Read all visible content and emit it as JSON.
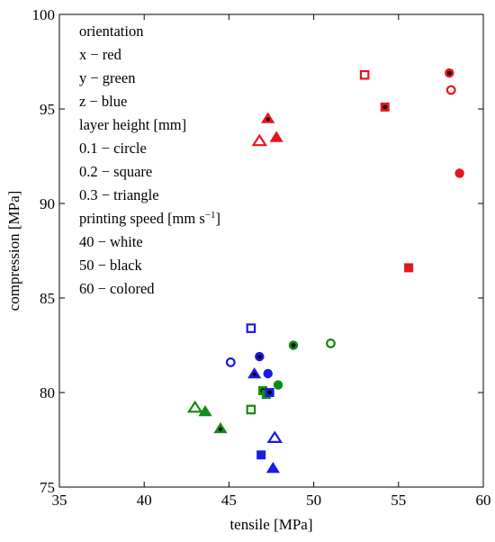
{
  "chart_data": {
    "type": "scatter",
    "xlabel": "tensile [MPa]",
    "ylabel": "compression [MPa]",
    "xlim": [
      35,
      60
    ],
    "ylim": [
      75,
      100
    ],
    "xticks": [
      35,
      40,
      45,
      50,
      55,
      60
    ],
    "yticks": [
      75,
      80,
      85,
      90,
      95,
      100
    ],
    "grid": false,
    "legend_placement": "top-left",
    "legend_lines": [
      "orientation",
      "x − red",
      "y − green",
      "z − blue",
      "layer height [mm]",
      "0.1 − circle",
      "0.2 − square",
      "0.3 − triangle",
      "printing speed [mm s⁻¹]",
      "40 − white",
      "50 − black",
      "60 − colored"
    ],
    "colors": {
      "x": "#e8141c",
      "y": "#138a16",
      "z": "#1a1ae6"
    },
    "points": [
      {
        "orientation": "x",
        "layer_height": 0.1,
        "speed": 50,
        "x": 58.0,
        "y": 96.9
      },
      {
        "orientation": "x",
        "layer_height": 0.1,
        "speed": 40,
        "x": 58.1,
        "y": 96.0
      },
      {
        "orientation": "x",
        "layer_height": 0.1,
        "speed": 60,
        "x": 58.6,
        "y": 91.6
      },
      {
        "orientation": "x",
        "layer_height": 0.2,
        "speed": 40,
        "x": 53.0,
        "y": 96.8
      },
      {
        "orientation": "x",
        "layer_height": 0.2,
        "speed": 50,
        "x": 54.2,
        "y": 95.1
      },
      {
        "orientation": "x",
        "layer_height": 0.2,
        "speed": 60,
        "x": 55.6,
        "y": 86.6
      },
      {
        "orientation": "x",
        "layer_height": 0.3,
        "speed": 50,
        "x": 47.3,
        "y": 94.5
      },
      {
        "orientation": "x",
        "layer_height": 0.3,
        "speed": 40,
        "x": 46.8,
        "y": 93.3
      },
      {
        "orientation": "x",
        "layer_height": 0.3,
        "speed": 60,
        "x": 47.8,
        "y": 93.5
      },
      {
        "orientation": "y",
        "layer_height": 0.1,
        "speed": 50,
        "x": 48.8,
        "y": 82.5
      },
      {
        "orientation": "y",
        "layer_height": 0.1,
        "speed": 40,
        "x": 51.0,
        "y": 82.6
      },
      {
        "orientation": "y",
        "layer_height": 0.1,
        "speed": 60,
        "x": 47.9,
        "y": 80.4
      },
      {
        "orientation": "y",
        "layer_height": 0.2,
        "speed": 40,
        "x": 46.3,
        "y": 79.1
      },
      {
        "orientation": "y",
        "layer_height": 0.2,
        "speed": 50,
        "x": 47.0,
        "y": 80.1
      },
      {
        "orientation": "y",
        "layer_height": 0.2,
        "speed": 60,
        "x": 47.2,
        "y": 79.9
      },
      {
        "orientation": "y",
        "layer_height": 0.3,
        "speed": 40,
        "x": 43.0,
        "y": 79.2
      },
      {
        "orientation": "y",
        "layer_height": 0.3,
        "speed": 60,
        "x": 43.6,
        "y": 79.0
      },
      {
        "orientation": "y",
        "layer_height": 0.3,
        "speed": 50,
        "x": 44.5,
        "y": 78.1
      },
      {
        "orientation": "z",
        "layer_height": 0.1,
        "speed": 40,
        "x": 45.1,
        "y": 81.6
      },
      {
        "orientation": "z",
        "layer_height": 0.1,
        "speed": 50,
        "x": 46.8,
        "y": 81.9
      },
      {
        "orientation": "z",
        "layer_height": 0.1,
        "speed": 60,
        "x": 47.3,
        "y": 81.0
      },
      {
        "orientation": "z",
        "layer_height": 0.2,
        "speed": 40,
        "x": 46.3,
        "y": 83.4
      },
      {
        "orientation": "z",
        "layer_height": 0.2,
        "speed": 50,
        "x": 47.4,
        "y": 80.0
      },
      {
        "orientation": "z",
        "layer_height": 0.2,
        "speed": 60,
        "x": 46.9,
        "y": 76.7
      },
      {
        "orientation": "z",
        "layer_height": 0.3,
        "speed": 50,
        "x": 46.5,
        "y": 81.0
      },
      {
        "orientation": "z",
        "layer_height": 0.3,
        "speed": 40,
        "x": 47.7,
        "y": 77.6
      },
      {
        "orientation": "z",
        "layer_height": 0.3,
        "speed": 60,
        "x": 47.6,
        "y": 76.0
      }
    ]
  }
}
